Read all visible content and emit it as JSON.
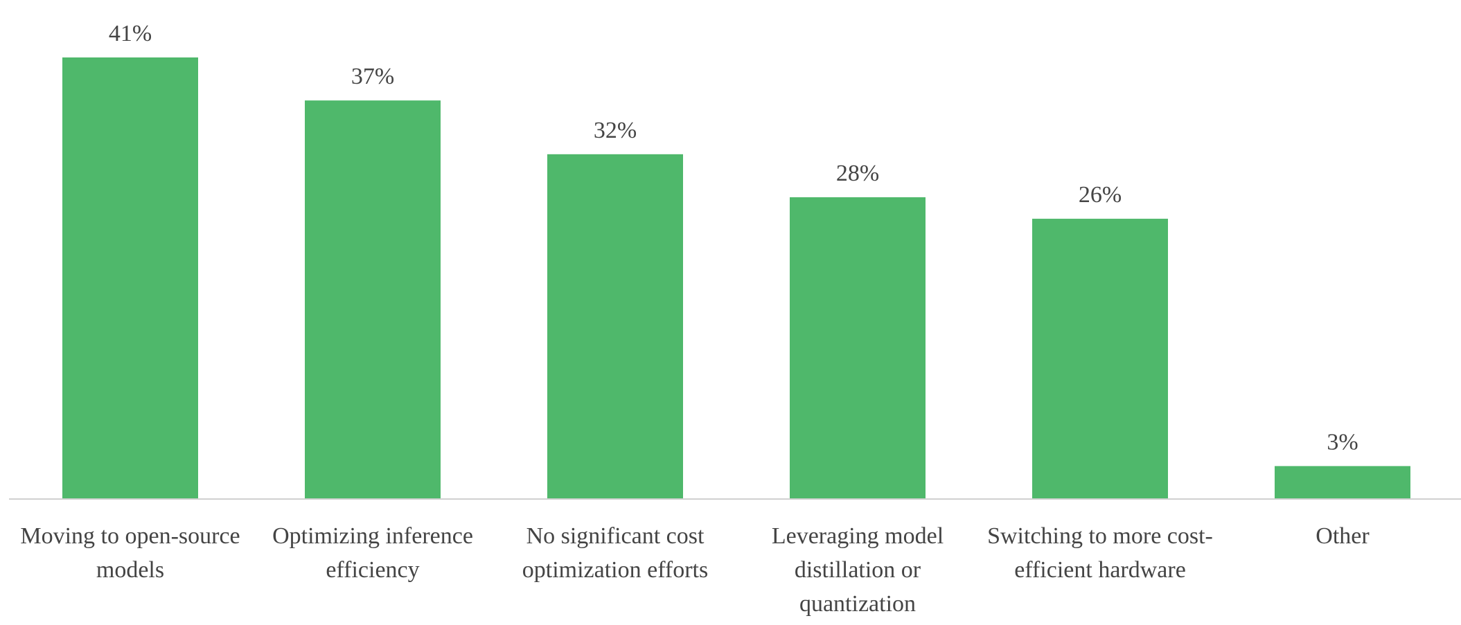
{
  "chart_data": {
    "type": "bar",
    "categories": [
      "Moving to open-source models",
      "Optimizing inference efficiency",
      "No significant cost optimization efforts",
      "Leveraging model distillation or quantization",
      "Switching to more cost-efficient hardware",
      "Other"
    ],
    "values": [
      41,
      37,
      32,
      28,
      26,
      3
    ],
    "value_labels": [
      "41%",
      "37%",
      "32%",
      "28%",
      "26%",
      "3%"
    ],
    "color": "#4fb86b"
  }
}
